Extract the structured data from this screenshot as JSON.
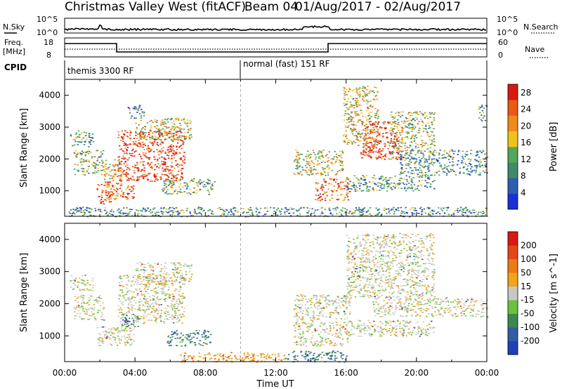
{
  "header": {
    "station": "Christmas Valley West (fitACF)",
    "beam": "Beam 04",
    "dates": "01/Aug/2017 - 02/Aug/2017"
  },
  "noise_panel": {
    "left_label": "N.Sky",
    "right_label": "N.Search",
    "left_ticks": [
      "10^5",
      "10^0"
    ],
    "right_ticks": [
      "10^5",
      "10^0"
    ]
  },
  "freq_panel": {
    "left_label_1": "Freq.",
    "left_label_2": "[MHz]",
    "left_ticks": [
      "18",
      "8"
    ],
    "right_label": "Nave",
    "right_ticks": [
      "60",
      "0"
    ]
  },
  "cpid_panel": {
    "label": "CPID",
    "segments": [
      {
        "text": "themis 3300 RF",
        "start_hour": 0,
        "end_hour": 10
      },
      {
        "text": "normal (fast) 151 RF",
        "start_hour": 10,
        "end_hour": 24
      }
    ]
  },
  "colors": {
    "power_scale": [
      "#1a2fd6",
      "#2b5fb0",
      "#3e8a6b",
      "#54a65a",
      "#f2c21c",
      "#f08a1a",
      "#e85a15",
      "#d8190f"
    ],
    "velocity_scale": [
      "#1f3fb8",
      "#2f5fa0",
      "#3a8a4f",
      "#6bc23c",
      "#c8c8c0",
      "#f0a51a",
      "#ee7a16",
      "#e4461a",
      "#d8190f"
    ]
  },
  "chart_data": [
    {
      "type": "heatmap",
      "name": "power",
      "xlabel": "Time UT",
      "ylabel": "Slant Range [km]",
      "xlim": [
        0,
        24
      ],
      "ylim": [
        200,
        4500
      ],
      "x_ticks": [
        "00:00",
        "04:00",
        "08:00",
        "12:00",
        "16:00",
        "20:00",
        "00:00"
      ],
      "y_ticks": [
        1000,
        2000,
        3000,
        4000
      ],
      "colorbar": {
        "label": "Power [dB]",
        "ticks": [
          4,
          8,
          12,
          16,
          20,
          24,
          28
        ],
        "range": [
          0,
          30
        ]
      },
      "regions": [
        {
          "t0": 0.3,
          "t1": 1.6,
          "r0": 2400,
          "r1": 2900,
          "level": 0.35
        },
        {
          "t0": 0.5,
          "t1": 2.2,
          "r0": 1500,
          "r1": 2300,
          "level": 0.45
        },
        {
          "t0": 1.8,
          "t1": 2.6,
          "r0": 600,
          "r1": 1300,
          "level": 0.85
        },
        {
          "t0": 2.3,
          "t1": 4.0,
          "r0": 700,
          "r1": 1200,
          "level": 0.8
        },
        {
          "t0": 2.2,
          "t1": 3.2,
          "r0": 1200,
          "r1": 2000,
          "level": 0.6
        },
        {
          "t0": 3.0,
          "t1": 6.8,
          "r0": 1300,
          "r1": 2900,
          "level": 0.9
        },
        {
          "t0": 4.0,
          "t1": 7.2,
          "r0": 2600,
          "r1": 3300,
          "level": 0.55
        },
        {
          "t0": 5.5,
          "t1": 8.5,
          "r0": 900,
          "r1": 1400,
          "level": 0.4
        },
        {
          "t0": 3.5,
          "t1": 4.5,
          "r0": 3300,
          "r1": 3700,
          "level": 0.3
        },
        {
          "t0": 0.2,
          "t1": 24,
          "r0": 200,
          "r1": 500,
          "level": 0.3
        },
        {
          "t0": 13.0,
          "t1": 15.8,
          "r0": 1500,
          "r1": 2300,
          "level": 0.55
        },
        {
          "t0": 14.2,
          "t1": 16.2,
          "r0": 700,
          "r1": 1400,
          "level": 0.8
        },
        {
          "t0": 15.8,
          "t1": 17.8,
          "r0": 2400,
          "r1": 4300,
          "level": 0.6
        },
        {
          "t0": 16.8,
          "t1": 19.2,
          "r0": 2000,
          "r1": 3200,
          "level": 0.85
        },
        {
          "t0": 18.5,
          "t1": 21.0,
          "r0": 2200,
          "r1": 3500,
          "level": 0.5
        },
        {
          "t0": 19.0,
          "t1": 24,
          "r0": 1500,
          "r1": 2300,
          "level": 0.3
        },
        {
          "t0": 16.0,
          "t1": 21.0,
          "r0": 1000,
          "r1": 1500,
          "level": 0.35
        },
        {
          "t0": 23.5,
          "t1": 24,
          "r0": 3200,
          "r1": 3700,
          "level": 0.3
        }
      ]
    },
    {
      "type": "heatmap",
      "name": "velocity",
      "xlabel": "Time UT",
      "ylabel": "Slant Range [km]",
      "xlim": [
        0,
        24
      ],
      "ylim": [
        200,
        4500
      ],
      "x_ticks": [
        "00:00",
        "04:00",
        "08:00",
        "12:00",
        "16:00",
        "20:00",
        "00:00"
      ],
      "y_ticks": [
        1000,
        2000,
        3000,
        4000
      ],
      "colorbar": {
        "label": "Velocity [m s^-1]",
        "ticks": [
          200,
          100,
          50,
          15,
          -15,
          -50,
          -100,
          -200
        ],
        "range": [
          -250,
          250
        ]
      },
      "regions": [
        {
          "t0": 0.3,
          "t1": 1.6,
          "r0": 2400,
          "r1": 2900,
          "level": 0.5
        },
        {
          "t0": 0.5,
          "t1": 2.2,
          "r0": 1500,
          "r1": 2300,
          "level": 0.5
        },
        {
          "t0": 1.8,
          "t1": 4.0,
          "r0": 700,
          "r1": 1300,
          "level": 0.5
        },
        {
          "t0": 3.0,
          "t1": 6.8,
          "r0": 1400,
          "r1": 2900,
          "level": 0.5
        },
        {
          "t0": 3.2,
          "t1": 4.2,
          "r0": 1300,
          "r1": 1700,
          "level": 0.2
        },
        {
          "t0": 4.0,
          "t1": 7.2,
          "r0": 2600,
          "r1": 3300,
          "level": 0.5
        },
        {
          "t0": 5.8,
          "t1": 8.3,
          "r0": 700,
          "r1": 1200,
          "level": 0.25
        },
        {
          "t0": 6.5,
          "t1": 12.5,
          "r0": 200,
          "r1": 500,
          "level": 0.65
        },
        {
          "t0": 12.5,
          "t1": 16.0,
          "r0": 200,
          "r1": 550,
          "level": 0.22
        },
        {
          "t0": 13.0,
          "t1": 16.2,
          "r0": 700,
          "r1": 2300,
          "level": 0.5
        },
        {
          "t0": 16.0,
          "t1": 21.0,
          "r0": 2200,
          "r1": 4200,
          "level": 0.5
        },
        {
          "t0": 17.5,
          "t1": 24,
          "r0": 1600,
          "r1": 2200,
          "level": 0.5
        },
        {
          "t0": 16.0,
          "t1": 21.0,
          "r0": 1000,
          "r1": 1500,
          "level": 0.5
        }
      ]
    }
  ]
}
